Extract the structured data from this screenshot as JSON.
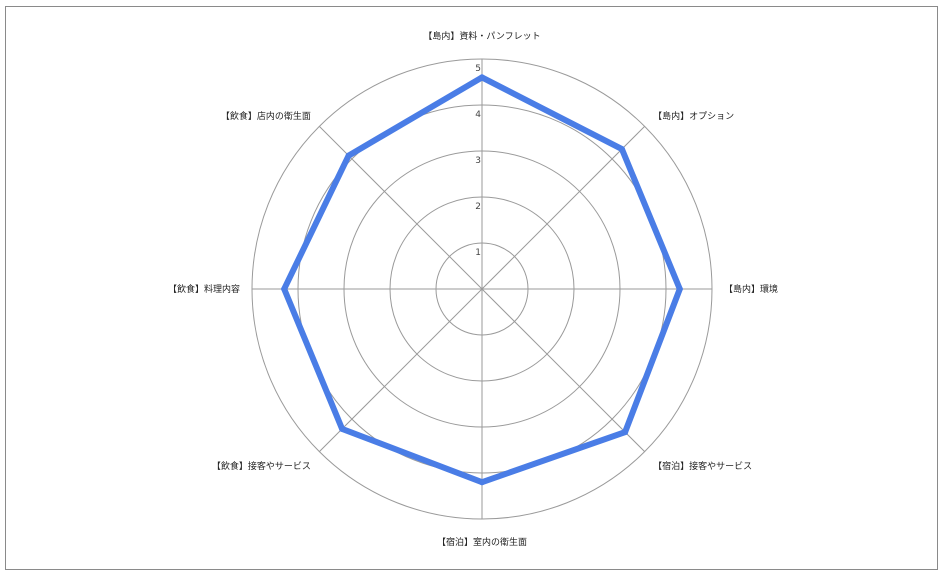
{
  "chart_data": {
    "type": "radar",
    "categories": [
      "【島内】資料・パンフレット",
      "【島内】オプション",
      "【島内】環境",
      "【宿泊】接客やサービス",
      "【宿泊】室内の衛生面",
      "【飲食】接客やサービス",
      "【飲食】料理内容",
      "【飲食】店内の衛生面"
    ],
    "series": [
      {
        "values": [
          4.6,
          4.3,
          4.3,
          4.4,
          4.2,
          4.3,
          4.3,
          4.1
        ]
      }
    ],
    "rlim": [
      0,
      5
    ],
    "rticks": [
      "1",
      "2",
      "3",
      "4",
      "5"
    ],
    "grid": true,
    "colors": {
      "series": "#4a7de6",
      "grid": "#9a9a9a",
      "frame": "#8a8a8a"
    }
  }
}
